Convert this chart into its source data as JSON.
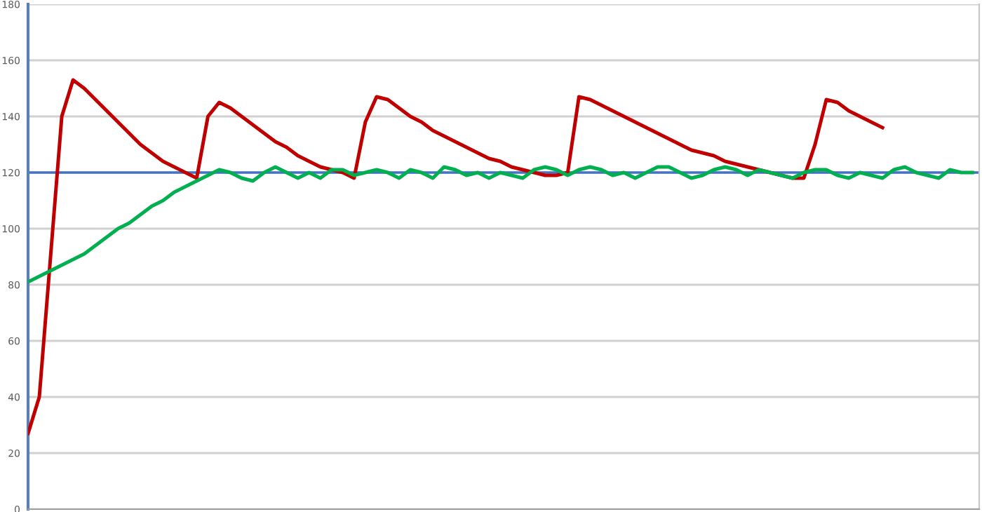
{
  "chart_data": {
    "type": "line",
    "categories": [
      null,
      null,
      null,
      null,
      null,
      null,
      null,
      null,
      null,
      null,
      null,
      null,
      null,
      null,
      null,
      null,
      null,
      null,
      null,
      null,
      null,
      null,
      null,
      null,
      null,
      null,
      null,
      null,
      null,
      null,
      null,
      null,
      null,
      null,
      null,
      null,
      null,
      null,
      null,
      null,
      null,
      null,
      null,
      null,
      null,
      null,
      null,
      null,
      null,
      null,
      null,
      null,
      null,
      null,
      null,
      null,
      null,
      null,
      null,
      null,
      null,
      null,
      null,
      null,
      null,
      null,
      null,
      null,
      null,
      null,
      null,
      null,
      null,
      null,
      null,
      null,
      null,
      null,
      null,
      null,
      null,
      null,
      null,
      null,
      null
    ],
    "series": [
      {
        "color": "#c00000",
        "values": [
          27,
          40,
          90,
          140,
          153,
          150,
          146,
          142,
          138,
          134,
          130,
          127,
          124,
          122,
          120,
          118,
          140,
          145,
          143,
          140,
          137,
          134,
          131,
          129,
          126,
          124,
          122,
          121,
          120,
          118,
          138,
          147,
          146,
          143,
          140,
          138,
          135,
          133,
          131,
          129,
          127,
          125,
          124,
          122,
          121,
          120,
          119,
          119,
          120,
          147,
          146,
          144,
          142,
          140,
          138,
          136,
          134,
          132,
          130,
          128,
          127,
          126,
          124,
          123,
          122,
          121,
          120,
          119,
          118,
          118,
          130,
          146,
          145,
          142,
          140,
          138,
          136,
          null,
          null,
          null,
          null,
          null,
          null,
          null,
          null
        ]
      },
      {
        "color": "#00b050",
        "values": [
          81,
          83,
          85,
          87,
          89,
          91,
          94,
          97,
          100,
          102,
          105,
          108,
          110,
          113,
          115,
          117,
          119,
          121,
          120,
          118,
          117,
          120,
          122,
          120,
          118,
          120,
          118,
          121,
          121,
          119,
          120,
          121,
          120,
          118,
          121,
          120,
          118,
          122,
          121,
          119,
          120,
          118,
          120,
          119,
          118,
          121,
          122,
          121,
          119,
          121,
          122,
          121,
          119,
          120,
          118,
          120,
          122,
          122,
          120,
          118,
          119,
          121,
          122,
          121,
          119,
          121,
          120,
          119,
          118,
          120,
          121,
          121,
          119,
          118,
          120,
          119,
          118,
          121,
          122,
          120,
          119,
          118,
          121,
          120,
          120
        ]
      }
    ],
    "ylim": [
      0,
      180
    ],
    "yticks": [
      0,
      20,
      40,
      60,
      80,
      100,
      120,
      140,
      160,
      180
    ],
    "ref_lines": [
      {
        "axis": "y",
        "value": 120,
        "color": "#4472c4"
      }
    ],
    "grid": "y",
    "tick_labels": "y",
    "legend": false,
    "marker": "none",
    "line_style": "solid"
  }
}
